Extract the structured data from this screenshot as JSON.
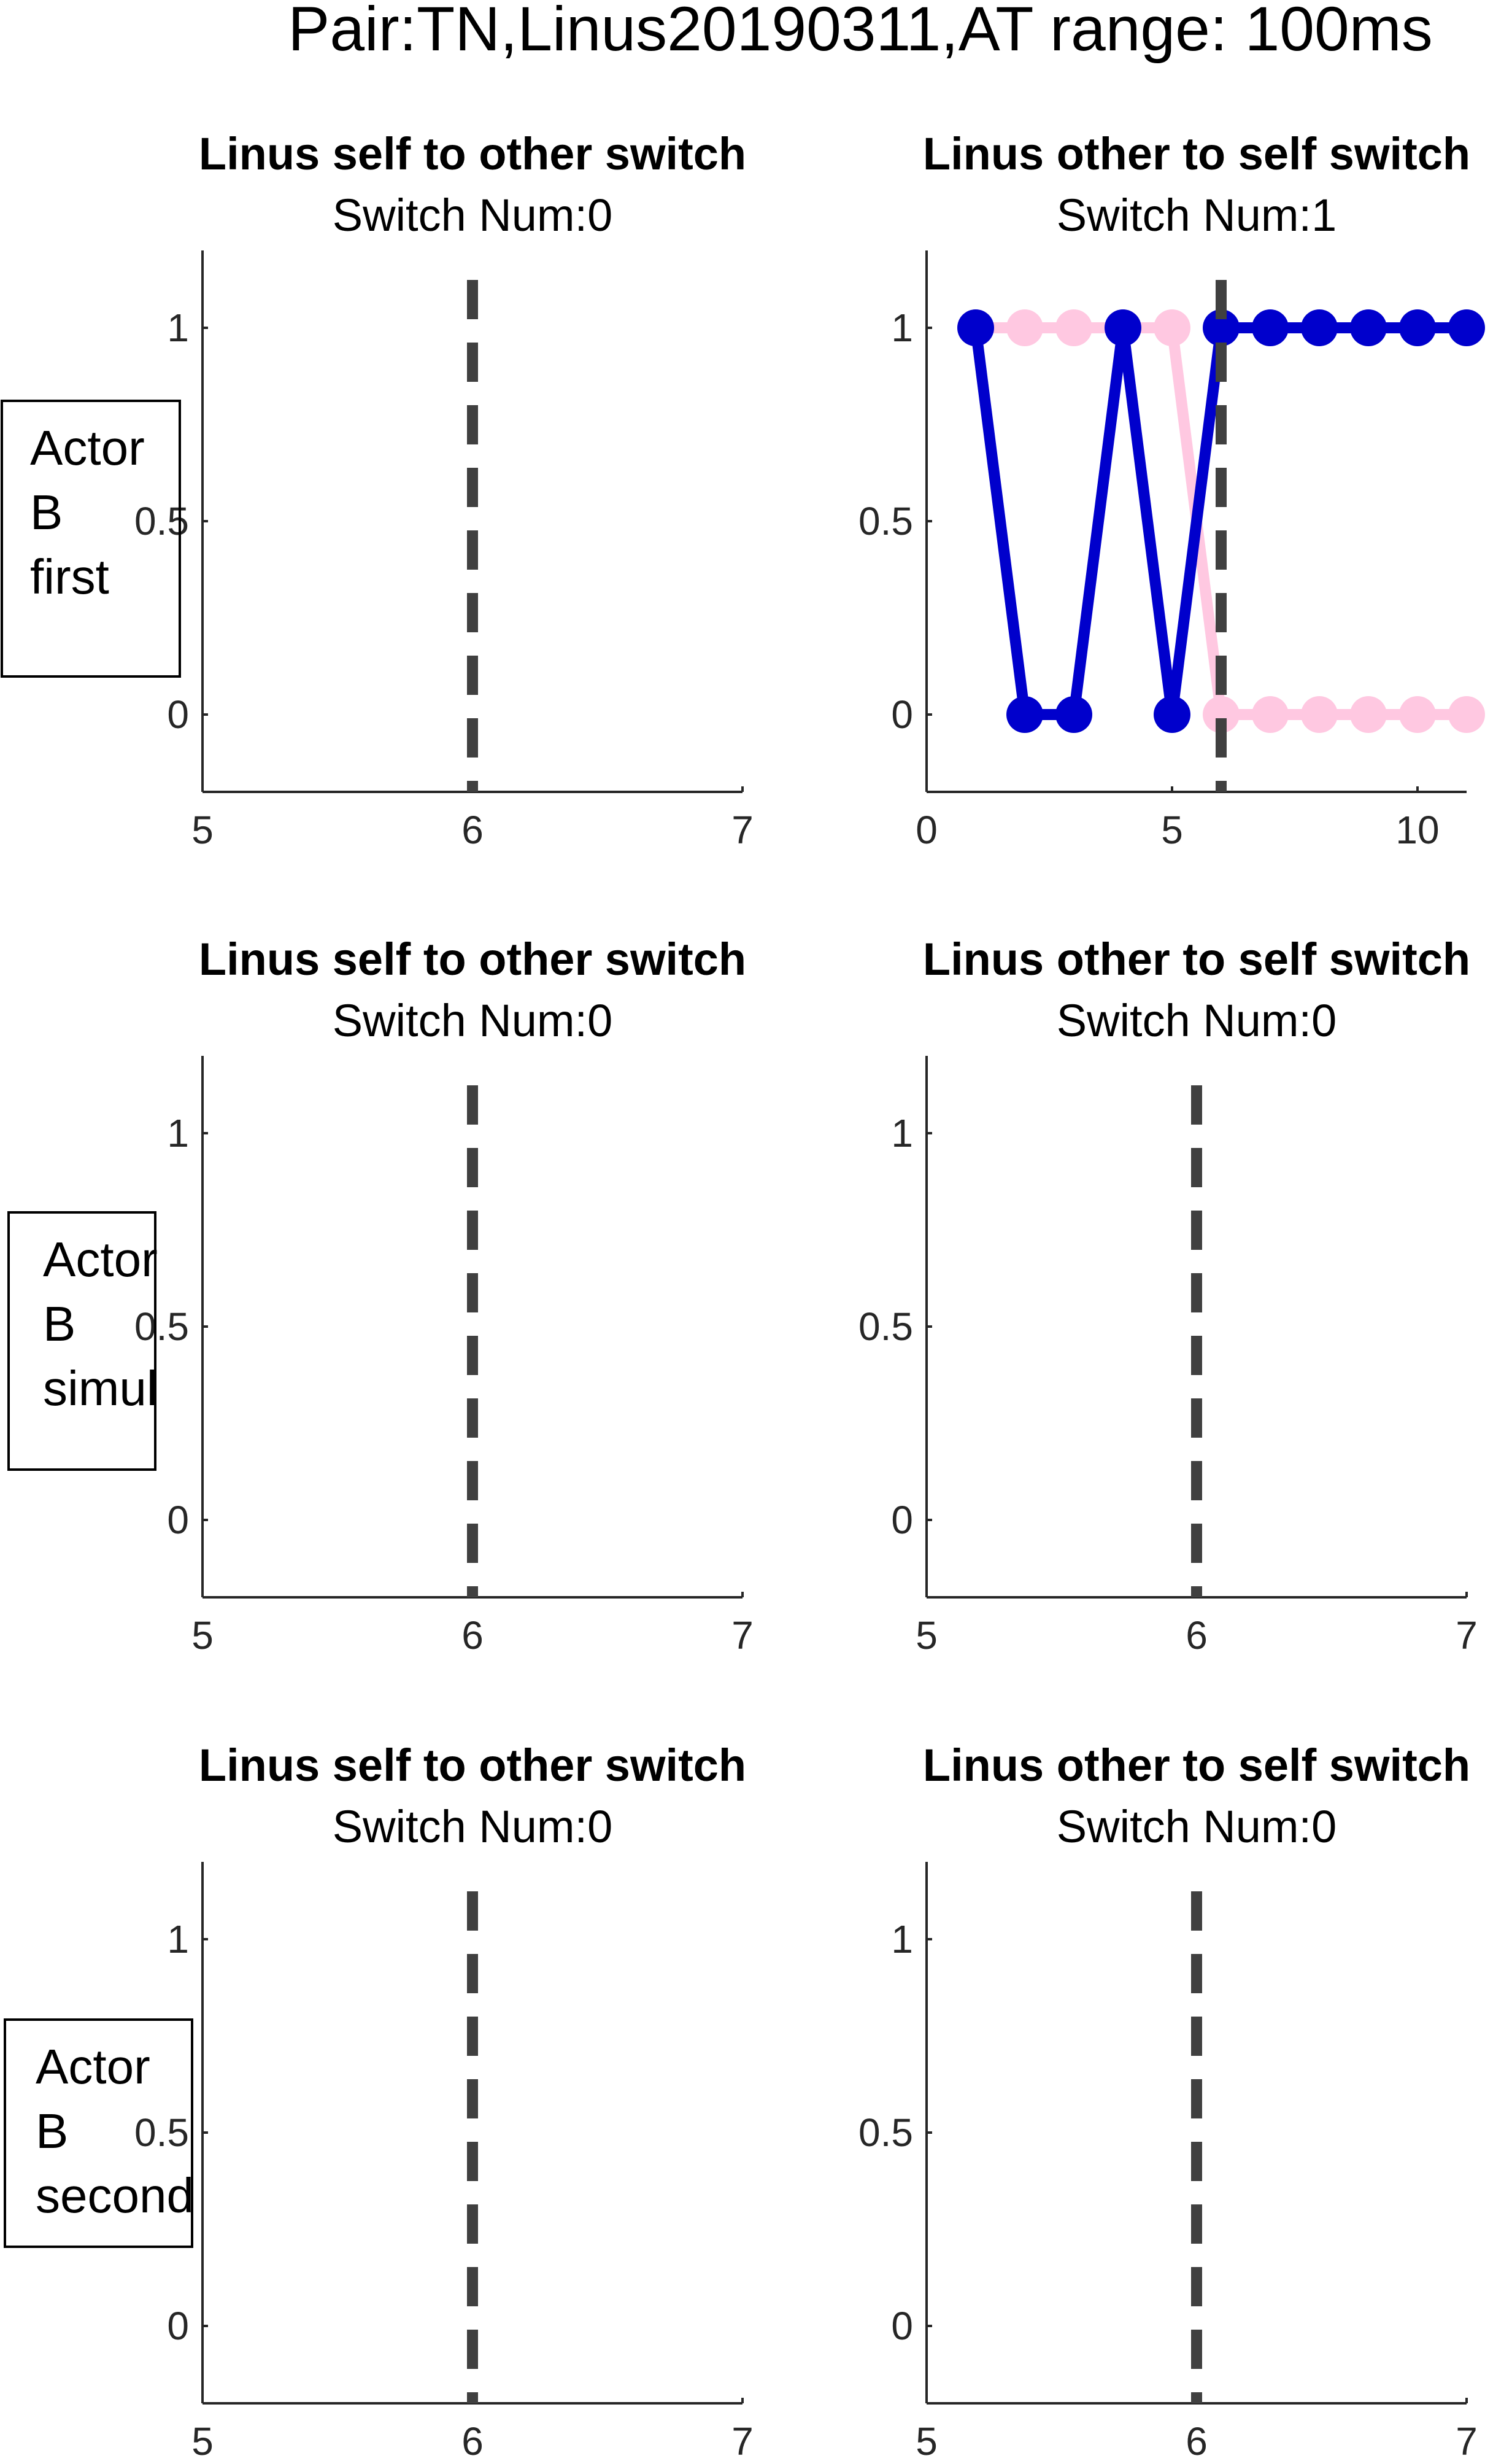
{
  "figure_title": "Pair:TN,Linus20190311,AT range: 100ms",
  "row_labels": [
    [
      "Actor",
      "B",
      "first"
    ],
    [
      "Actor",
      "B",
      "simul"
    ],
    [
      "Actor",
      "B",
      "second"
    ]
  ],
  "colors": {
    "series_a": "#0000cc",
    "series_b": "#ffc8e1",
    "switch_line": "#404040",
    "axis": "#262626"
  },
  "chart_data": [
    {
      "type": "line",
      "title": "Linus self to other switch",
      "subtitle": "Switch Num:0",
      "xlim": [
        5,
        7
      ],
      "ylim": [
        -0.2,
        1.2
      ],
      "xticks": [
        "5",
        "6",
        "7"
      ],
      "yticks": [
        "0",
        "0.5",
        "1"
      ],
      "switch_x": 6,
      "series": []
    },
    {
      "type": "line",
      "title": "Linus other to self switch",
      "subtitle": "Switch Num:1",
      "xlim": [
        0,
        11
      ],
      "ylim": [
        -0.2,
        1.2
      ],
      "xticks": [
        "0",
        "5",
        "10"
      ],
      "yticks": [
        "0",
        "0.5",
        "1"
      ],
      "switch_x": 6,
      "series": [
        {
          "x": [
            1,
            2,
            3,
            4,
            5,
            6,
            7,
            8,
            9,
            10,
            11
          ],
          "y": [
            1,
            1,
            1,
            1,
            1,
            0,
            0,
            0,
            0,
            0,
            0
          ],
          "color": "#ffc8e1"
        },
        {
          "x": [
            1,
            2,
            3,
            4,
            5,
            6,
            7,
            8,
            9,
            10,
            11
          ],
          "y": [
            1,
            0,
            0,
            1,
            0,
            1,
            1,
            1,
            1,
            1,
            1
          ],
          "color": "#0000cc"
        }
      ]
    },
    {
      "type": "line",
      "title": "Linus self to other switch",
      "subtitle": "Switch Num:0",
      "xlim": [
        5,
        7
      ],
      "ylim": [
        -0.2,
        1.2
      ],
      "xticks": [
        "5",
        "6",
        "7"
      ],
      "yticks": [
        "0",
        "0.5",
        "1"
      ],
      "switch_x": 6,
      "series": []
    },
    {
      "type": "line",
      "title": "Linus other to self switch",
      "subtitle": "Switch Num:0",
      "xlim": [
        5,
        7
      ],
      "ylim": [
        -0.2,
        1.2
      ],
      "xticks": [
        "5",
        "6",
        "7"
      ],
      "yticks": [
        "0",
        "0.5",
        "1"
      ],
      "switch_x": 6,
      "series": []
    },
    {
      "type": "line",
      "title": "Linus self to other switch",
      "subtitle": "Switch Num:0",
      "xlim": [
        5,
        7
      ],
      "ylim": [
        -0.2,
        1.2
      ],
      "xticks": [
        "5",
        "6",
        "7"
      ],
      "yticks": [
        "0",
        "0.5",
        "1"
      ],
      "switch_x": 6,
      "series": []
    },
    {
      "type": "line",
      "title": "Linus other to self switch",
      "subtitle": "Switch Num:0",
      "xlim": [
        5,
        7
      ],
      "ylim": [
        -0.2,
        1.2
      ],
      "xticks": [
        "5",
        "6",
        "7"
      ],
      "yticks": [
        "0",
        "0.5",
        "1"
      ],
      "switch_x": 6,
      "series": []
    }
  ]
}
